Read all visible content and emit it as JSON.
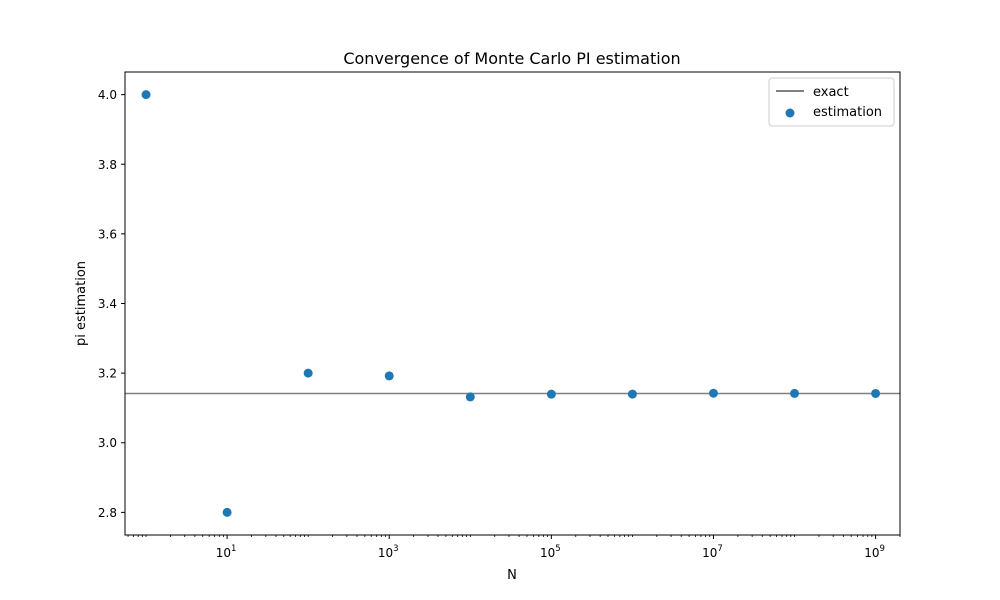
{
  "chart_data": {
    "type": "scatter",
    "title": "Convergence of Monte Carlo PI estimation",
    "xlabel": "N",
    "ylabel": "pi estimation",
    "xscale": "log",
    "xlim": [
      0.55,
      2000000000
    ],
    "ylim": [
      2.735,
      4.065
    ],
    "grid": false,
    "legend_position": "top-right",
    "x_ticks": [
      {
        "value": 10,
        "base": "10",
        "exp": "1"
      },
      {
        "value": 1000,
        "base": "10",
        "exp": "3"
      },
      {
        "value": 100000,
        "base": "10",
        "exp": "5"
      },
      {
        "value": 10000000,
        "base": "10",
        "exp": "7"
      },
      {
        "value": 1000000000,
        "base": "10",
        "exp": "9"
      }
    ],
    "y_ticks": [
      "2.8",
      "3.0",
      "3.2",
      "3.4",
      "3.6",
      "3.8",
      "4.0"
    ],
    "series": [
      {
        "name": "estimation",
        "kind": "scatter",
        "color": "#1f77b4",
        "x": [
          1,
          10,
          100,
          1000,
          10000,
          100000,
          1000000,
          10000000,
          100000000,
          1000000000
        ],
        "y": [
          4.0,
          2.8,
          3.2,
          3.192,
          3.1316,
          3.1396,
          3.1398,
          3.1422,
          3.1417,
          3.1416
        ]
      },
      {
        "name": "exact",
        "kind": "hline",
        "color": "#808080",
        "y": 3.14159
      }
    ]
  }
}
